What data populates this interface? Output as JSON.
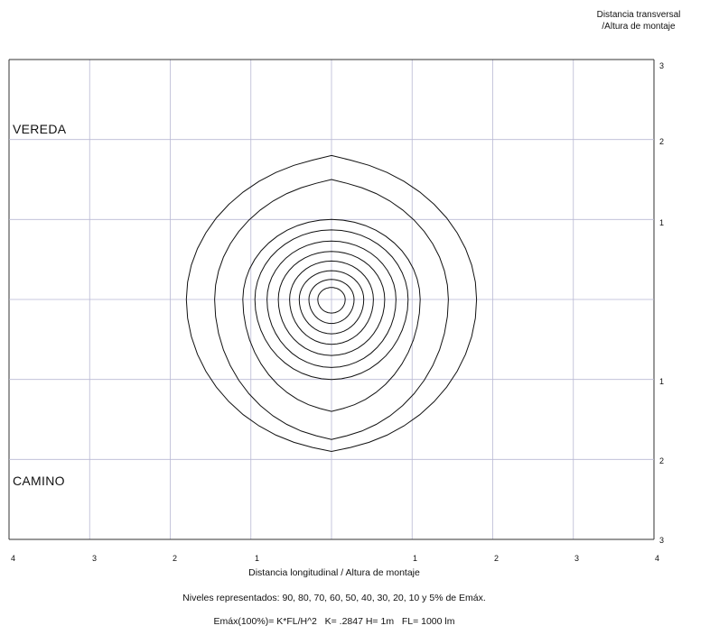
{
  "header": {
    "line1": "Distancia transversal",
    "line2": "/Altura de montaje"
  },
  "zones": {
    "top": "VEREDA",
    "bottom": "CAMINO"
  },
  "y_ticks": [
    "3",
    "2",
    "1",
    "1",
    "2",
    "3"
  ],
  "x_ticks": [
    "4",
    "3",
    "2",
    "1",
    "1",
    "2",
    "3",
    "4"
  ],
  "x_axis_label": "Distancia longitudinal / Altura de montaje",
  "footer": {
    "levels": "Niveles representados: 90, 80, 70, 60, 50, 40, 30, 20, 10 y 5% de Emáx.",
    "formula": "Emáx(100%)= K*FL/H^2   K= .2847 H= 1m   FL= 1000 lm"
  },
  "colors": {
    "grid": "#b9b9d4",
    "axis": "#333333",
    "contour": "#111111"
  },
  "chart_data": {
    "type": "isolux_contour",
    "x_range": [
      -4,
      4
    ],
    "y_range": [
      -3,
      3
    ],
    "levels_percent": [
      90,
      80,
      70,
      60,
      50,
      40,
      30,
      20,
      10,
      5
    ],
    "contours": [
      {
        "level": 5,
        "x_half_width": 1.8,
        "y_top": 1.8,
        "y_bottom": -1.9,
        "top_cusp": true,
        "bottom_cusp": true
      },
      {
        "level": 10,
        "x_half_width": 1.45,
        "y_top": 1.5,
        "y_bottom": -1.75,
        "top_cusp": true,
        "bottom_cusp": true
      },
      {
        "level": 20,
        "x_half_width": 1.1,
        "y_top": 1.0,
        "y_bottom": -1.4,
        "top_cusp": false,
        "bottom_cusp": true
      },
      {
        "level": 30,
        "x_half_width": 0.95,
        "y_top": 0.87,
        "y_bottom": -1.0,
        "top_cusp": false,
        "bottom_cusp": false
      },
      {
        "level": 40,
        "x_half_width": 0.8,
        "y_top": 0.73,
        "y_bottom": -0.85,
        "top_cusp": false,
        "bottom_cusp": false
      },
      {
        "level": 50,
        "x_half_width": 0.66,
        "y_top": 0.6,
        "y_bottom": -0.7,
        "top_cusp": false,
        "bottom_cusp": false
      },
      {
        "level": 60,
        "x_half_width": 0.52,
        "y_top": 0.48,
        "y_bottom": -0.56,
        "top_cusp": false,
        "bottom_cusp": false
      },
      {
        "level": 70,
        "x_half_width": 0.4,
        "y_top": 0.36,
        "y_bottom": -0.43,
        "top_cusp": false,
        "bottom_cusp": false
      },
      {
        "level": 80,
        "x_half_width": 0.28,
        "y_top": 0.25,
        "y_bottom": -0.3,
        "top_cusp": false,
        "bottom_cusp": false
      },
      {
        "level": 90,
        "x_half_width": 0.17,
        "y_top": 0.15,
        "y_bottom": -0.17,
        "top_cusp": false,
        "bottom_cusp": false
      }
    ]
  }
}
